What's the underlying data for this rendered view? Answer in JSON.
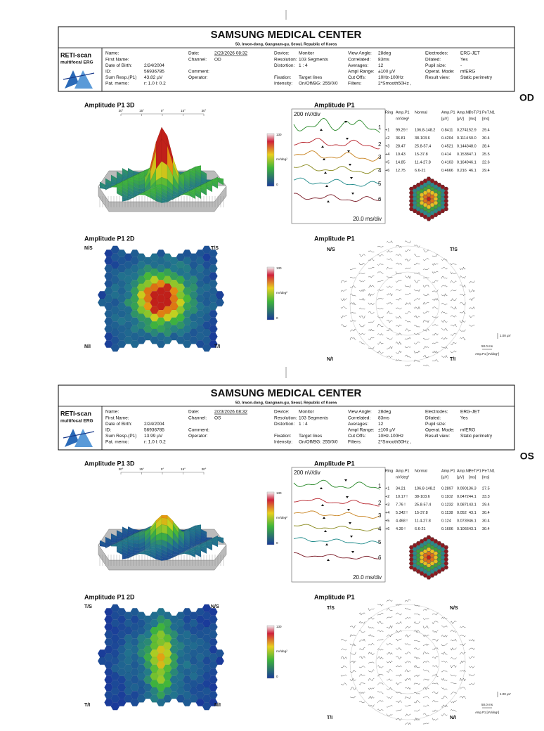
{
  "reports": [
    {
      "header": {
        "title": "SAMSUNG MEDICAL CENTER",
        "address": "50, Irwon-dong, Gangnam-gu, Seoul, Republic of Korea"
      },
      "logo": {
        "name": "RETI-scan",
        "sub": "multifocal ERG"
      },
      "info": [
        [
          {
            "label": "Name:"
          },
          {
            "label": "First Name:"
          },
          {
            "label": "Date of Birth:",
            "value": "2/24/2004"
          },
          {
            "label": "ID:",
            "value": "56936785"
          },
          {
            "label": "Sum Resp.(P1)",
            "value": "43.82 µV"
          },
          {
            "label": "Pat. memo:",
            "value": "r: 1.0 l: 0.2"
          }
        ],
        [
          {
            "label": "Date:",
            "value": "2/23/2026 08:32"
          },
          {
            "label": "Channel:",
            "value": "OD"
          },
          {
            "label": "Comment:"
          },
          {
            "label": "Operator:"
          }
        ],
        [
          {
            "label": "Device:",
            "value": "Monitor"
          },
          {
            "label": "Resolution:",
            "value": "103 Segments"
          },
          {
            "label": "Distortion:",
            "value": "1 : 4"
          },
          {
            "label": "Fixation:",
            "value": "Target lines"
          },
          {
            "label": "Intensity:",
            "value": "On/Off/BG: 255/0/0"
          }
        ],
        [
          {
            "label": "View Angle:",
            "value": "28deg"
          },
          {
            "label": "Correlated:",
            "value": "83ms"
          },
          {
            "label": "Averages:",
            "value": "12"
          },
          {
            "label": "Ampl Range:",
            "value": "±100 µV"
          },
          {
            "label": "Cut Offs:",
            "value": "10Hz-100Hz"
          },
          {
            "label": "Filters:",
            "value": "2*Smooth50Hz ,"
          }
        ],
        [
          {
            "label": "Electrodes:",
            "value": "ERG-JET"
          },
          {
            "label": "Dilated:",
            "value": "Yes"
          },
          {
            "label": "Pupil size:",
            "value": "-"
          },
          {
            "label": "Operat. Mode:",
            "value": "mfERG"
          },
          {
            "label": "Result view:",
            "value": "Static perimetry"
          }
        ]
      ],
      "eye": "OD",
      "panels": {
        "p3d": "Amplitude P1 3D",
        "traces": "Amplitude P1",
        "p2d": "Amplitude P1 2D",
        "field": "Amplitude P1"
      },
      "axis_3d": [
        "30°",
        "15°",
        "0°",
        "15°",
        "30°"
      ],
      "colorbar": {
        "max": "130",
        "unit": "nV/deg²",
        "min": "0"
      },
      "trace_scale": {
        "y": "200 nV/div",
        "x": "20.0 ms/div"
      },
      "trace_labels": [
        "1",
        "2",
        "3",
        "4",
        "5",
        "6"
      ],
      "table": {
        "header": [
          "Ring",
          "Amp.P1",
          "Normal",
          "Amp.P1",
          "Amp.N1",
          "PeT.P1",
          "PeT.N1"
        ],
        "units": [
          "nV/deg²",
          "[µV]",
          "[µV]",
          "[ms]",
          "[ms]"
        ],
        "rows": [
          [
            "+1",
            "99.29 !",
            "106.8-148.2",
            "0.8411",
            "0.2741",
            "52.9",
            "29.4"
          ],
          [
            "+2",
            "36.81",
            "38-103.6",
            "0.4204",
            "0.1114",
            "50.0",
            "30.4"
          ],
          [
            "+3",
            "28.47",
            "25.8-57.4",
            "0.4521",
            "0.1443",
            "48.0",
            "28.4"
          ],
          [
            "+4",
            "19.43",
            "15-37.8",
            "0.414",
            "0.1538",
            "47.1",
            "25.5"
          ],
          [
            "+5",
            "14.85",
            "11.4-27.8",
            "0.4103",
            "0.1649",
            "46.1",
            "22.6"
          ],
          [
            "+6",
            "12.75",
            "6.6-21",
            "0.4666",
            "0.216",
            "46.1",
            "29.4"
          ]
        ]
      },
      "quadrants_2d": [
        "N/S",
        "T/S",
        "N/I",
        "T/I"
      ],
      "quadrants_field": [
        "N/S",
        "T/S",
        "N/I",
        "T/I"
      ],
      "scale_bar": {
        "amp": "1.00 µV",
        "time": "50.0 ms",
        "legend": "Amp.P1 [nV/deg²]"
      }
    },
    {
      "header": {
        "title": "SAMSUNG MEDICAL CENTER",
        "address": "50, Irwon-dong, Gangnam-gu, Seoul, Republic of Korea"
      },
      "logo": {
        "name": "RETI-scan",
        "sub": "multifocal ERG"
      },
      "info": [
        [
          {
            "label": "Name:"
          },
          {
            "label": "First Name:"
          },
          {
            "label": "Date of Birth:",
            "value": "2/24/2004"
          },
          {
            "label": "ID:",
            "value": "56936785"
          },
          {
            "label": "Sum Resp.(P1)",
            "value": "13.99 µV"
          },
          {
            "label": "Pat. memo:",
            "value": "r: 1.0 l: 0.2"
          }
        ],
        [
          {
            "label": "Date:",
            "value": "2/23/2026 08:32"
          },
          {
            "label": "Channel:",
            "value": "OS"
          },
          {
            "label": "Comment:"
          },
          {
            "label": "Operator:"
          }
        ],
        [
          {
            "label": "Device:",
            "value": "Monitor"
          },
          {
            "label": "Resolution:",
            "value": "103 Segments"
          },
          {
            "label": "Distortion:",
            "value": "1 : 4"
          },
          {
            "label": "Fixation:",
            "value": "Target lines"
          },
          {
            "label": "Intensity:",
            "value": "On/Off/BG: 255/0/0"
          }
        ],
        [
          {
            "label": "View Angle:",
            "value": "28deg"
          },
          {
            "label": "Correlated:",
            "value": "83ms"
          },
          {
            "label": "Averages:",
            "value": "12"
          },
          {
            "label": "Ampl Range:",
            "value": "±100 µV"
          },
          {
            "label": "Cut Offs:",
            "value": "10Hz-100Hz"
          },
          {
            "label": "Filters:",
            "value": "2*Smooth50Hz ,"
          }
        ],
        [
          {
            "label": "Electrodes:",
            "value": "ERG-JET"
          },
          {
            "label": "Dilated:",
            "value": "Yes"
          },
          {
            "label": "Pupil size:"
          },
          {
            "label": "Operat. Mode:",
            "value": "mfERG"
          },
          {
            "label": "Result view:",
            "value": "Static perimetry"
          }
        ]
      ],
      "eye": "OS",
      "panels": {
        "p3d": "Amplitude P1 3D",
        "traces": "Amplitude P1",
        "p2d": "Amplitude P1 2D",
        "field": "Amplitude P1"
      },
      "axis_3d": [
        "30°",
        "15°",
        "0°",
        "15°",
        "30°"
      ],
      "colorbar": {
        "max": "130",
        "unit": "nV/deg²",
        "min": "0"
      },
      "trace_scale": {
        "y": "200 nV/div",
        "x": "20.0 ms/div"
      },
      "trace_labels": [
        "1",
        "2",
        "3",
        "4",
        "5",
        "6"
      ],
      "table": {
        "header": [
          "Ring",
          "Amp.P1",
          "Normal",
          "Amp.P1",
          "Amp.N1",
          "PeT.P1",
          "PeT.N1"
        ],
        "units": [
          "nV/deg²",
          "[µV]",
          "[µV]",
          "[ms]",
          "[ms]"
        ],
        "rows": [
          [
            "+1",
            "34.21",
            "106.8-148.2",
            "0.2897",
            "0.0901",
            "36.3",
            "27.5"
          ],
          [
            "+2",
            "10.17 !",
            "38-103.6",
            "0.1102",
            "0.0472",
            "44.1",
            "33.3"
          ],
          [
            "+3",
            "7.76 !",
            "25.8-57.4",
            "0.1232",
            "0.0871",
            "43.1",
            "29.4"
          ],
          [
            "+4",
            "5.342 !",
            "15-37.8",
            "0.1138",
            "0.052",
            "43.1",
            "30.4"
          ],
          [
            "+5",
            "4.468 !",
            "11.4-27.8",
            "0.124",
            "0.0739",
            "46.1",
            "30.4"
          ],
          [
            "+6",
            "4.39 !",
            "6.6-21",
            "0.1606",
            "0.1066",
            "43.1",
            "30.4"
          ]
        ]
      },
      "quadrants_2d": [
        "T/S",
        "N/S",
        "T/I",
        "N/I"
      ],
      "quadrants_field": [
        "T/S",
        "N/S",
        "T/I",
        "N/I"
      ],
      "scale_bar": {
        "amp": "1.00 µV",
        "time": "50.0 ms",
        "legend": "Amp.P1 [nV/deg²]"
      }
    }
  ]
}
